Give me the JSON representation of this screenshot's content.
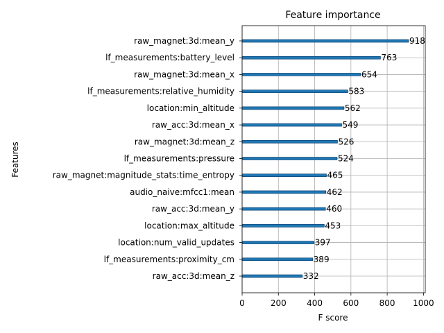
{
  "chart_data": {
    "type": "bar",
    "orientation": "horizontal",
    "title": "Feature importance",
    "xlabel": "F score",
    "ylabel": "Features",
    "xlim": [
      0,
      1010
    ],
    "xticks": [
      0,
      200,
      400,
      600,
      800,
      1000
    ],
    "grid": true,
    "bar_color": "#1f77b4",
    "categories": [
      "raw_magnet:3d:mean_y",
      "lf_measurements:battery_level",
      "raw_magnet:3d:mean_x",
      "lf_measurements:relative_humidity",
      "location:min_altitude",
      "raw_acc:3d:mean_x",
      "raw_magnet:3d:mean_z",
      "lf_measurements:pressure",
      "raw_magnet:magnitude_stats:time_entropy",
      "audio_naive:mfcc1:mean",
      "raw_acc:3d:mean_y",
      "location:max_altitude",
      "location:num_valid_updates",
      "lf_measurements:proximity_cm",
      "raw_acc:3d:mean_z"
    ],
    "values": [
      918,
      763,
      654,
      583,
      562,
      549,
      526,
      524,
      465,
      462,
      460,
      453,
      397,
      389,
      332
    ]
  }
}
